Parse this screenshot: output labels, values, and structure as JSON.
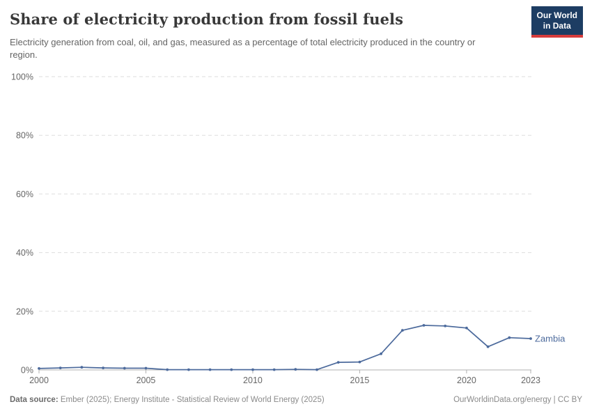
{
  "header": {
    "title": "Share of electricity production from fossil fuels",
    "subtitle": "Electricity generation from coal, oil, and gas, measured as a percentage of total electricity produced in the country or region.",
    "logo": {
      "line1": "Our World",
      "line2": "in Data"
    }
  },
  "chart_data": {
    "type": "line",
    "title": "Share of electricity production from fossil fuels",
    "x": [
      2000,
      2001,
      2002,
      2003,
      2004,
      2005,
      2006,
      2007,
      2008,
      2009,
      2010,
      2011,
      2012,
      2013,
      2014,
      2015,
      2016,
      2017,
      2018,
      2019,
      2020,
      2021,
      2022,
      2023
    ],
    "series": [
      {
        "name": "Zambia",
        "color": "#4C6A9C",
        "values": [
          0.5,
          0.7,
          0.9,
          0.7,
          0.6,
          0.6,
          0.1,
          0.1,
          0.1,
          0.1,
          0.1,
          0.1,
          0.2,
          0.1,
          2.6,
          2.7,
          5.5,
          13.5,
          15.2,
          15.0,
          14.3,
          7.9,
          11.0,
          10.7
        ]
      }
    ],
    "xlabel": "",
    "ylabel": "",
    "ylim": [
      0,
      100
    ],
    "yticks": [
      0,
      20,
      40,
      60,
      80,
      100
    ],
    "ytick_suffix": "%",
    "xticks": [
      2000,
      2005,
      2010,
      2015,
      2020,
      2023
    ],
    "grid": "horizontal-dashed",
    "legend_position": "end-of-line"
  },
  "footer": {
    "datasource_label": "Data source:",
    "datasource_text": " Ember (2025); Energy Institute - Statistical Review of World Energy (2025)",
    "link_text": "OurWorldinData.org/energy | CC BY"
  },
  "colors": {
    "accent": "#4C6A9C",
    "logo_bg": "#1d3d63",
    "logo_stripe": "#d73c3c",
    "grid": "#dedede",
    "axis": "#b0b0b0",
    "tick_text": "#666666"
  }
}
